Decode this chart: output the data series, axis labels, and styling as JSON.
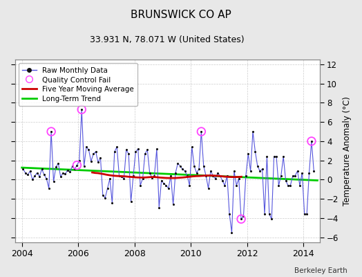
{
  "title": "BRUNSWICK CO AP",
  "subtitle": "33.931 N, 78.071 W (United States)",
  "ylabel_right": "Temperature Anomaly (°C)",
  "credit": "Berkeley Earth",
  "ylim": [
    -6.5,
    12.5
  ],
  "xlim": [
    2003.75,
    2014.58
  ],
  "yticks": [
    -6,
    -4,
    -2,
    0,
    2,
    4,
    6,
    8,
    10,
    12
  ],
  "xticks": [
    2004,
    2006,
    2008,
    2010,
    2012,
    2014
  ],
  "bg_color": "#e8e8e8",
  "plot_bg": "#ffffff",
  "raw_color": "#5555dd",
  "dot_color": "#111111",
  "qc_color": "#ff44ff",
  "ma_color": "#cc0000",
  "trend_color": "#00cc00",
  "raw_monthly": [
    [
      2004.042,
      1.1
    ],
    [
      2004.125,
      0.7
    ],
    [
      2004.208,
      0.5
    ],
    [
      2004.292,
      0.9
    ],
    [
      2004.375,
      0.0
    ],
    [
      2004.458,
      0.4
    ],
    [
      2004.542,
      0.7
    ],
    [
      2004.625,
      0.3
    ],
    [
      2004.708,
      1.1
    ],
    [
      2004.792,
      0.5
    ],
    [
      2004.875,
      0.1
    ],
    [
      2004.958,
      -0.9
    ],
    [
      2005.042,
      5.0
    ],
    [
      2005.125,
      -0.2
    ],
    [
      2005.208,
      1.3
    ],
    [
      2005.292,
      1.7
    ],
    [
      2005.375,
      0.3
    ],
    [
      2005.458,
      0.7
    ],
    [
      2005.542,
      0.6
    ],
    [
      2005.625,
      1.0
    ],
    [
      2005.708,
      0.8
    ],
    [
      2005.792,
      1.4
    ],
    [
      2005.875,
      1.1
    ],
    [
      2005.958,
      1.5
    ],
    [
      2006.042,
      2.0
    ],
    [
      2006.125,
      7.3
    ],
    [
      2006.208,
      1.4
    ],
    [
      2006.292,
      3.4
    ],
    [
      2006.375,
      3.1
    ],
    [
      2006.458,
      1.9
    ],
    [
      2006.542,
      2.7
    ],
    [
      2006.625,
      2.9
    ],
    [
      2006.708,
      1.8
    ],
    [
      2006.792,
      2.3
    ],
    [
      2006.875,
      -1.6
    ],
    [
      2006.958,
      -1.9
    ],
    [
      2007.042,
      -0.9
    ],
    [
      2007.125,
      0.1
    ],
    [
      2007.208,
      -2.4
    ],
    [
      2007.292,
      2.9
    ],
    [
      2007.375,
      3.4
    ],
    [
      2007.458,
      0.4
    ],
    [
      2007.542,
      0.3
    ],
    [
      2007.625,
      0.1
    ],
    [
      2007.708,
      3.1
    ],
    [
      2007.792,
      2.7
    ],
    [
      2007.875,
      -2.3
    ],
    [
      2007.958,
      0.4
    ],
    [
      2008.042,
      2.9
    ],
    [
      2008.125,
      3.2
    ],
    [
      2008.208,
      -0.6
    ],
    [
      2008.292,
      0.1
    ],
    [
      2008.375,
      2.7
    ],
    [
      2008.458,
      3.1
    ],
    [
      2008.542,
      0.7
    ],
    [
      2008.625,
      0.2
    ],
    [
      2008.708,
      0.4
    ],
    [
      2008.792,
      3.2
    ],
    [
      2008.875,
      -2.9
    ],
    [
      2008.958,
      -0.1
    ],
    [
      2009.042,
      -0.4
    ],
    [
      2009.125,
      -0.6
    ],
    [
      2009.208,
      -0.9
    ],
    [
      2009.292,
      0.4
    ],
    [
      2009.375,
      -2.6
    ],
    [
      2009.458,
      0.7
    ],
    [
      2009.542,
      1.7
    ],
    [
      2009.625,
      1.4
    ],
    [
      2009.708,
      1.1
    ],
    [
      2009.792,
      0.9
    ],
    [
      2009.875,
      0.4
    ],
    [
      2009.958,
      -0.6
    ],
    [
      2010.042,
      3.4
    ],
    [
      2010.125,
      1.4
    ],
    [
      2010.208,
      0.7
    ],
    [
      2010.292,
      1.1
    ],
    [
      2010.375,
      5.0
    ],
    [
      2010.458,
      1.4
    ],
    [
      2010.542,
      0.4
    ],
    [
      2010.625,
      -0.9
    ],
    [
      2010.708,
      0.9
    ],
    [
      2010.792,
      0.4
    ],
    [
      2010.875,
      0.1
    ],
    [
      2010.958,
      0.7
    ],
    [
      2011.042,
      0.4
    ],
    [
      2011.125,
      -0.1
    ],
    [
      2011.208,
      -0.6
    ],
    [
      2011.292,
      0.4
    ],
    [
      2011.375,
      -3.6
    ],
    [
      2011.458,
      -5.5
    ],
    [
      2011.542,
      0.9
    ],
    [
      2011.625,
      -0.6
    ],
    [
      2011.708,
      0.1
    ],
    [
      2011.792,
      -4.1
    ],
    [
      2011.875,
      -3.8
    ],
    [
      2011.958,
      0.4
    ],
    [
      2012.042,
      2.7
    ],
    [
      2012.125,
      0.9
    ],
    [
      2012.208,
      5.0
    ],
    [
      2012.292,
      2.9
    ],
    [
      2012.375,
      1.4
    ],
    [
      2012.458,
      0.9
    ],
    [
      2012.542,
      1.1
    ],
    [
      2012.625,
      -3.6
    ],
    [
      2012.708,
      2.4
    ],
    [
      2012.792,
      -3.6
    ],
    [
      2012.875,
      -4.1
    ],
    [
      2012.958,
      2.4
    ],
    [
      2013.042,
      2.4
    ],
    [
      2013.125,
      -0.6
    ],
    [
      2013.208,
      0.4
    ],
    [
      2013.292,
      2.4
    ],
    [
      2013.375,
      -0.1
    ],
    [
      2013.458,
      -0.6
    ],
    [
      2013.542,
      -0.6
    ],
    [
      2013.625,
      0.4
    ],
    [
      2013.708,
      0.4
    ],
    [
      2013.792,
      0.9
    ],
    [
      2013.875,
      -0.6
    ],
    [
      2013.958,
      0.7
    ],
    [
      2014.042,
      -3.6
    ],
    [
      2014.125,
      -3.6
    ],
    [
      2014.208,
      0.7
    ],
    [
      2014.292,
      4.0
    ],
    [
      2014.375,
      0.9
    ]
  ],
  "qc_fail": [
    [
      2005.042,
      5.0
    ],
    [
      2006.125,
      7.3
    ],
    [
      2005.958,
      1.5
    ],
    [
      2010.375,
      5.0
    ],
    [
      2011.792,
      -4.1
    ],
    [
      2014.292,
      4.0
    ]
  ],
  "five_yr_ma": [
    [
      2006.5,
      0.75
    ],
    [
      2006.6,
      0.7
    ],
    [
      2006.7,
      0.68
    ],
    [
      2006.8,
      0.63
    ],
    [
      2006.9,
      0.58
    ],
    [
      2007.0,
      0.52
    ],
    [
      2007.1,
      0.47
    ],
    [
      2007.2,
      0.43
    ],
    [
      2007.3,
      0.4
    ],
    [
      2007.4,
      0.38
    ],
    [
      2007.5,
      0.37
    ],
    [
      2007.6,
      0.35
    ],
    [
      2007.7,
      0.33
    ],
    [
      2007.8,
      0.3
    ],
    [
      2007.9,
      0.28
    ],
    [
      2008.0,
      0.25
    ],
    [
      2008.1,
      0.23
    ],
    [
      2008.2,
      0.22
    ],
    [
      2008.3,
      0.22
    ],
    [
      2008.4,
      0.23
    ],
    [
      2008.5,
      0.25
    ],
    [
      2008.6,
      0.27
    ],
    [
      2008.7,
      0.27
    ],
    [
      2008.8,
      0.25
    ],
    [
      2008.9,
      0.22
    ],
    [
      2009.0,
      0.2
    ],
    [
      2009.1,
      0.18
    ],
    [
      2009.2,
      0.17
    ],
    [
      2009.3,
      0.17
    ],
    [
      2009.4,
      0.17
    ],
    [
      2009.5,
      0.18
    ],
    [
      2009.6,
      0.2
    ],
    [
      2009.7,
      0.22
    ],
    [
      2009.8,
      0.25
    ],
    [
      2009.9,
      0.28
    ],
    [
      2010.0,
      0.32
    ],
    [
      2010.1,
      0.35
    ],
    [
      2010.2,
      0.37
    ],
    [
      2010.3,
      0.38
    ],
    [
      2010.4,
      0.4
    ],
    [
      2010.5,
      0.42
    ],
    [
      2010.6,
      0.43
    ],
    [
      2010.7,
      0.43
    ],
    [
      2010.8,
      0.42
    ],
    [
      2010.9,
      0.4
    ],
    [
      2011.0,
      0.38
    ],
    [
      2011.1,
      0.35
    ],
    [
      2011.2,
      0.32
    ],
    [
      2011.3,
      0.3
    ],
    [
      2011.4,
      0.28
    ],
    [
      2011.5,
      0.27
    ],
    [
      2011.6,
      0.27
    ],
    [
      2011.7,
      0.28
    ],
    [
      2011.8,
      0.3
    ]
  ],
  "trend_line": [
    [
      2004.0,
      1.25
    ],
    [
      2014.5,
      -0.08
    ]
  ]
}
